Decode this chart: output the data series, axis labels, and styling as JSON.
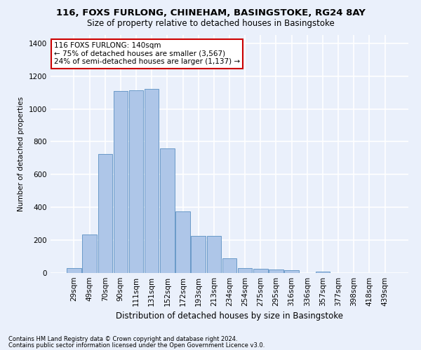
{
  "title1": "116, FOXS FURLONG, CHINEHAM, BASINGSTOKE, RG24 8AY",
  "title2": "Size of property relative to detached houses in Basingstoke",
  "xlabel": "Distribution of detached houses by size in Basingstoke",
  "ylabel": "Number of detached properties",
  "footnote1": "Contains HM Land Registry data © Crown copyright and database right 2024.",
  "footnote2": "Contains public sector information licensed under the Open Government Licence v3.0.",
  "bar_labels": [
    "29sqm",
    "49sqm",
    "70sqm",
    "90sqm",
    "111sqm",
    "131sqm",
    "152sqm",
    "172sqm",
    "193sqm",
    "213sqm",
    "234sqm",
    "254sqm",
    "275sqm",
    "295sqm",
    "316sqm",
    "336sqm",
    "357sqm",
    "377sqm",
    "398sqm",
    "418sqm",
    "439sqm"
  ],
  "bar_values": [
    30,
    235,
    725,
    1110,
    1115,
    1120,
    760,
    375,
    225,
    225,
    90,
    30,
    25,
    20,
    15,
    0,
    10,
    0,
    0,
    0,
    0
  ],
  "bar_color": "#aec6e8",
  "bar_edge_color": "#5a8fc2",
  "background_color": "#eaf0fb",
  "grid_color": "#ffffff",
  "ylim": [
    0,
    1450
  ],
  "yticks": [
    0,
    200,
    400,
    600,
    800,
    1000,
    1200,
    1400
  ],
  "annotation_text": "116 FOXS FURLONG: 140sqm\n← 75% of detached houses are smaller (3,567)\n24% of semi-detached houses are larger (1,137) →",
  "annotation_box_color": "#ffffff",
  "annotation_box_edge": "#cc0000",
  "property_bin_index": 5,
  "title1_fontsize": 9.5,
  "title2_fontsize": 8.5,
  "xlabel_fontsize": 8.5,
  "ylabel_fontsize": 7.5,
  "tick_fontsize": 7.5,
  "annot_fontsize": 7.5,
  "footnote_fontsize": 6.0
}
